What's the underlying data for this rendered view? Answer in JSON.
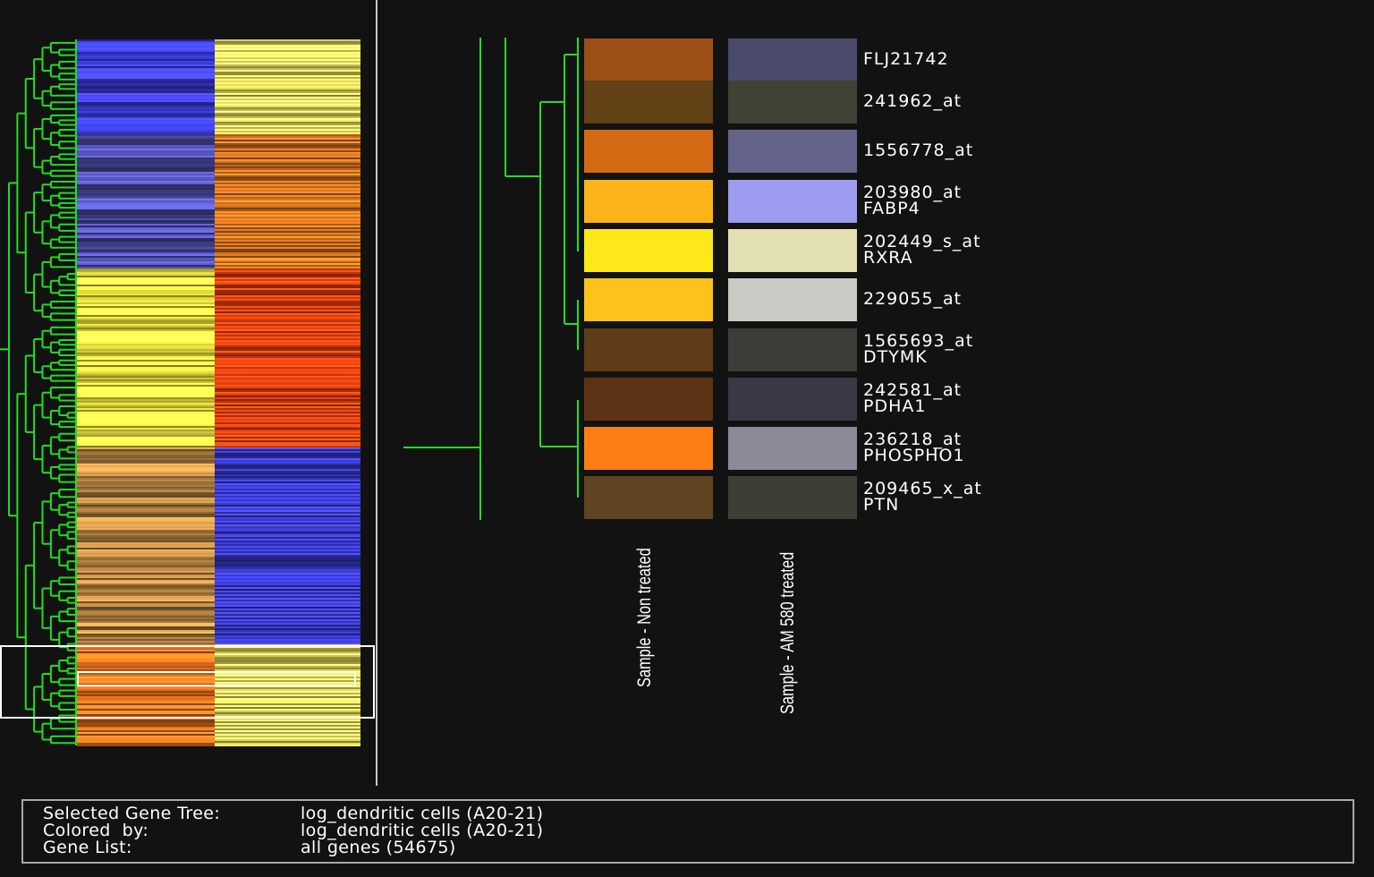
{
  "overview": {
    "column_colors_pattern": [
      {
        "segment": "1",
        "left": "#3a3ad8",
        "right": "#e8e060"
      },
      {
        "segment": "2",
        "left": "#4a4aa0",
        "right": "#d07020"
      },
      {
        "segment": "3",
        "left": "#e8e040",
        "right": "#e84010"
      },
      {
        "segment": "4",
        "left": "#b08040",
        "right": "#3838c8"
      },
      {
        "segment": "5",
        "left": "#e87020",
        "right": "#e8e060"
      }
    ]
  },
  "zoom": {
    "rows": [
      {
        "label1": "FLJ21742",
        "label2": "",
        "color_non_treated": "#9c5016",
        "color_am580": "#4a4a6c"
      },
      {
        "label1": "241962_at",
        "label2": "",
        "color_non_treated": "#624116",
        "color_am580": "#414136"
      },
      {
        "label1": "1556778_at",
        "label2": "",
        "color_non_treated": "#d56a14",
        "color_am580": "#64648a"
      },
      {
        "label1": "203980_at",
        "label2": "FABP4",
        "color_non_treated": "#fdb418",
        "color_am580": "#9c9cf0"
      },
      {
        "label1": "202449_s_at",
        "label2": "RXRA",
        "color_non_treated": "#fde81a",
        "color_am580": "#e2e0b2"
      },
      {
        "label1": "229055_at",
        "label2": "",
        "color_non_treated": "#fdc31a",
        "color_am580": "#cacac4"
      },
      {
        "label1": "1565693_at",
        "label2": "DTYMK",
        "color_non_treated": "#603c18",
        "color_am580": "#3c3c38"
      },
      {
        "label1": "242581_at",
        "label2": "PDHA1",
        "color_non_treated": "#5e3214",
        "color_am580": "#393946"
      },
      {
        "label1": "236218_at",
        "label2": "PHOSPHO1",
        "color_non_treated": "#fd7e14",
        "color_am580": "#8a8a98"
      },
      {
        "label1": "209465_x_at",
        "label2": "PTN",
        "color_non_treated": "#5e4420",
        "color_am580": "#3e3e34"
      }
    ],
    "samples": [
      "Sample - Non treated",
      "Sample - AM 580 treated"
    ]
  },
  "info": {
    "selected_tree_label": "Selected Gene Tree:",
    "selected_tree_value": "log_dendritic cells (A20-21)",
    "colored_by_label": "Colored  by:",
    "colored_by_value": "log_dendritic cells (A20-21)",
    "gene_list_label": "Gene List:",
    "gene_list_value": "all genes (54675)"
  },
  "colors": {
    "background": "#121212",
    "tree": "#22dd22",
    "selection": "#ffffff"
  }
}
